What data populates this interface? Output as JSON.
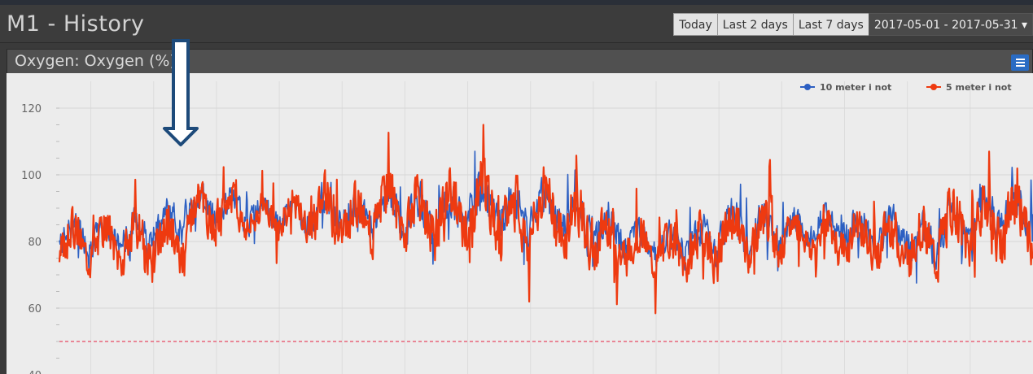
{
  "header": {
    "title": "M1 - History",
    "buttons": [
      "Today",
      "Last 2 days",
      "Last 7 days"
    ],
    "date_range": "2017-05-01 - 2017-05-31",
    "date_range_caret": "▾"
  },
  "panel": {
    "title": "Oxygen: Oxygen (%)"
  },
  "colors": {
    "series1": "#2c5fc2",
    "series2": "#ee3a10",
    "threshold": "#e8647a",
    "arrow": "#1d4a7a"
  },
  "chart_data": {
    "type": "line",
    "title": "Oxygen: Oxygen (%)",
    "xlabel": "",
    "ylabel": "",
    "ylim": [
      40,
      120
    ],
    "yticks": [
      40,
      60,
      80,
      100,
      120
    ],
    "threshold": 50,
    "grid": true,
    "legend_position": "top-right",
    "x_range_days": [
      0,
      31
    ],
    "series": [
      {
        "name": "10 meter i not",
        "samples_per_day": 48,
        "seed": 7,
        "daily_mean": [
          82,
          82,
          83,
          86,
          91,
          90,
          88,
          88,
          89,
          88,
          90,
          88,
          89,
          91,
          88,
          89,
          87,
          83,
          80,
          79,
          80,
          84,
          84,
          84,
          85,
          84,
          82,
          80,
          86,
          88,
          88,
          88
        ],
        "daily_amplitude": [
          6,
          6,
          7,
          7,
          7,
          6,
          6,
          6,
          8,
          7,
          8,
          9,
          8,
          9,
          10,
          9,
          9,
          9,
          7,
          7,
          8,
          8,
          8,
          6,
          6,
          7,
          8,
          9,
          9,
          9,
          9,
          9
        ]
      },
      {
        "name": "5 meter i not",
        "samples_per_day": 48,
        "seed": 3,
        "daily_mean": [
          80,
          80,
          79,
          80,
          88,
          89,
          87,
          88,
          88,
          86,
          90,
          87,
          89,
          91,
          86,
          89,
          85,
          81,
          78,
          77,
          78,
          82,
          83,
          82,
          82,
          81,
          80,
          79,
          84,
          86,
          86,
          86
        ],
        "daily_amplitude": [
          9,
          9,
          10,
          10,
          9,
          8,
          7,
          7,
          11,
          10,
          11,
          12,
          12,
          12,
          13,
          12,
          12,
          11,
          9,
          9,
          10,
          10,
          10,
          8,
          8,
          9,
          10,
          11,
          12,
          12,
          12,
          12
        ]
      }
    ]
  }
}
